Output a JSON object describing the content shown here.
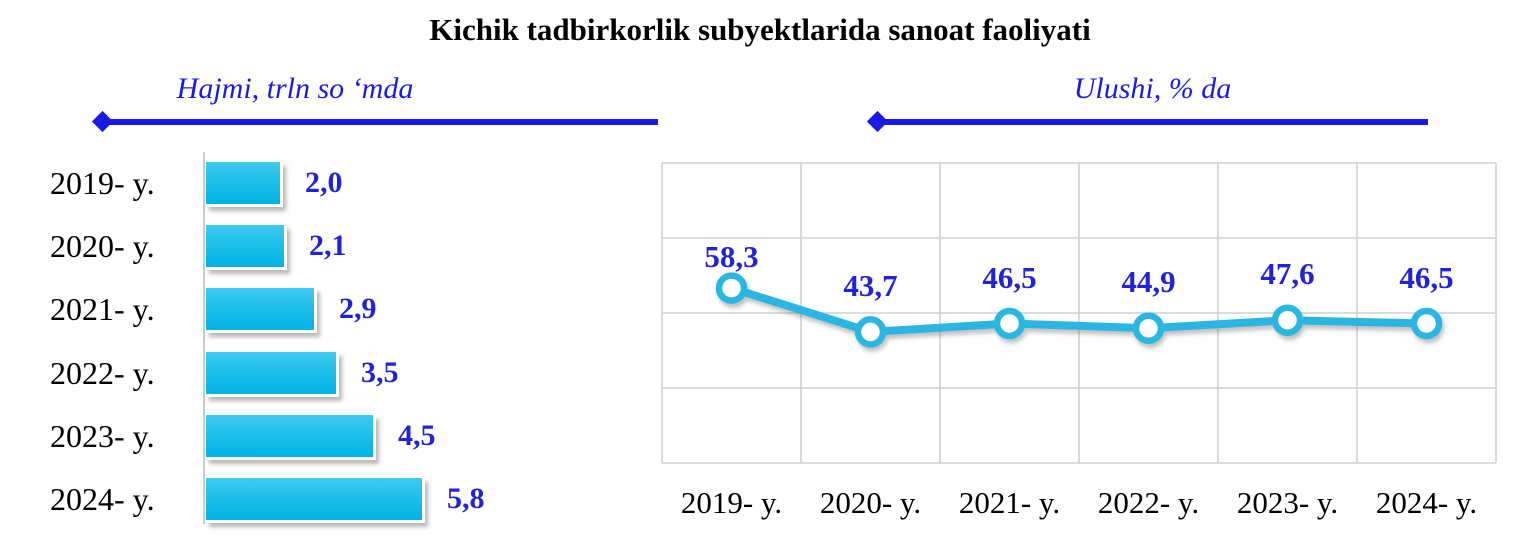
{
  "page_title": "Kichik tadbirkorlik subyektlarida sanoat faoliyati",
  "sections": {
    "left": {
      "header": "Hajmi, trln so ‘mda"
    },
    "right": {
      "header": "Ulushi, % da"
    }
  },
  "colors": {
    "accent_blue": "#1a1ae6",
    "value_blue": "#2222d7",
    "bar_cyan_top": "#41caf0",
    "bar_cyan_bottom": "#00b2e4",
    "line_cyan": "#29b6e2",
    "grid_gray": "#d0d0d0",
    "axis_gray": "#c6ccd2",
    "text_black": "#000000"
  },
  "chart_data": [
    {
      "type": "bar",
      "orientation": "horizontal",
      "title": "Hajmi, trln so ‘mda",
      "categories": [
        "2019- y.",
        "2020- y.",
        "2021- y.",
        "2022- y.",
        "2023- y.",
        "2024- y."
      ],
      "values": [
        2.0,
        2.1,
        2.9,
        3.5,
        4.5,
        5.8
      ],
      "value_labels": [
        "2,0",
        "2,1",
        "2,9",
        "3,5",
        "4,5",
        "5,8"
      ],
      "xlabel": "",
      "ylabel": "",
      "xlim": [
        0,
        6.2
      ],
      "grid": false,
      "legend_position": "none"
    },
    {
      "type": "line",
      "title": "Ulushi, % da",
      "categories": [
        "2019- y.",
        "2020- y.",
        "2021- y.",
        "2022- y.",
        "2023- y.",
        "2024- y."
      ],
      "values": [
        58.3,
        43.7,
        46.5,
        44.9,
        47.6,
        46.5
      ],
      "value_labels": [
        "58,3",
        "43,7",
        "46,5",
        "44,9",
        "47,6",
        "46,5"
      ],
      "xlabel": "",
      "ylabel": "",
      "ylim": [
        0,
        100
      ],
      "y_gridline_step": 25,
      "grid": true,
      "marker": "circle-open",
      "legend_position": "none"
    }
  ]
}
